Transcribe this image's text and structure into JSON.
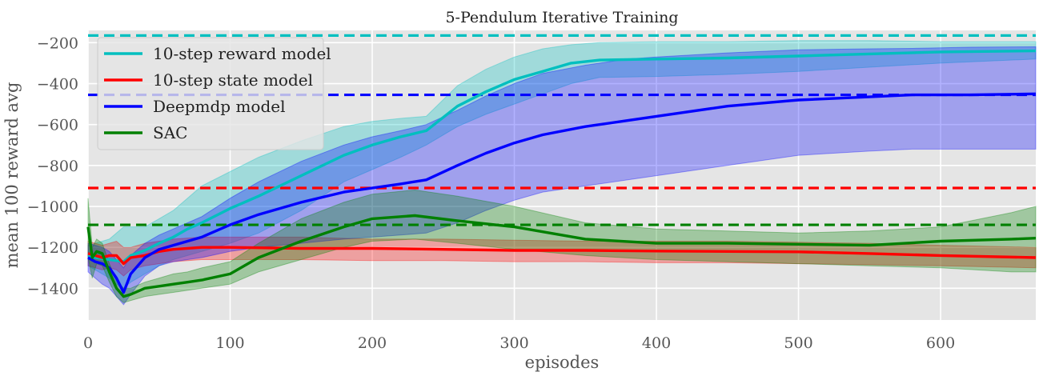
{
  "chart_data": {
    "type": "line",
    "title": "5-Pendulum Iterative Training",
    "xlabel": "episodes",
    "ylabel": "mean 100 reward avg",
    "xlim": [
      0,
      667
    ],
    "ylim": [
      -1555,
      -140
    ],
    "xticks": [
      0,
      100,
      200,
      300,
      400,
      500,
      600
    ],
    "yticks": [
      -1400,
      -1200,
      -1000,
      -800,
      -600,
      -400,
      -200
    ],
    "xtick_labels": [
      "0",
      "100",
      "200",
      "300",
      "400",
      "500",
      "600"
    ],
    "ytick_labels": [
      "−1400",
      "−1200",
      "−1000",
      "−800",
      "−600",
      "−400",
      "−200"
    ],
    "grid": true,
    "legend_position": "top-left",
    "background": "#e5e5e5",
    "series": [
      {
        "name": "10-step reward model",
        "color": "#00bfbf",
        "x": [
          0,
          5,
          10,
          15,
          20,
          25,
          30,
          40,
          50,
          60,
          70,
          80,
          100,
          120,
          150,
          180,
          200,
          220,
          238,
          260,
          280,
          300,
          320,
          340,
          360,
          400,
          450,
          500,
          550,
          600,
          667
        ],
        "y": [
          -1240,
          -1250,
          -1255,
          -1260,
          -1265,
          -1270,
          -1240,
          -1215,
          -1180,
          -1150,
          -1110,
          -1080,
          -1010,
          -950,
          -850,
          -750,
          -700,
          -660,
          -630,
          -510,
          -440,
          -380,
          -340,
          -300,
          -285,
          -280,
          -275,
          -265,
          -255,
          -245,
          -240
        ],
        "upper": [
          -1190,
          -1180,
          -1170,
          -1160,
          -1130,
          -1100,
          -1100,
          -1100,
          -1060,
          -1020,
          -960,
          -900,
          -830,
          -760,
          -680,
          -610,
          -585,
          -570,
          -560,
          -410,
          -330,
          -270,
          -230,
          -210,
          -200,
          -195,
          -195,
          -190,
          -190,
          -195,
          -195
        ],
        "lower": [
          -1290,
          -1310,
          -1330,
          -1350,
          -1380,
          -1400,
          -1370,
          -1330,
          -1290,
          -1260,
          -1240,
          -1220,
          -1180,
          -1130,
          -1020,
          -880,
          -820,
          -760,
          -700,
          -610,
          -550,
          -500,
          -450,
          -400,
          -370,
          -365,
          -355,
          -340,
          -320,
          -300,
          -280
        ],
        "reference": -165
      },
      {
        "name": "10-step state model",
        "color": "#ff0000",
        "x": [
          0,
          5,
          10,
          15,
          20,
          25,
          30,
          40,
          50,
          60,
          80,
          100,
          150,
          200,
          250,
          300,
          350,
          400,
          450,
          500,
          550,
          600,
          667
        ],
        "y": [
          -1230,
          -1240,
          -1250,
          -1240,
          -1240,
          -1280,
          -1250,
          -1240,
          -1220,
          -1210,
          -1200,
          -1200,
          -1205,
          -1205,
          -1210,
          -1215,
          -1215,
          -1218,
          -1220,
          -1222,
          -1230,
          -1240,
          -1250
        ],
        "upper": [
          -1170,
          -1180,
          -1190,
          -1180,
          -1170,
          -1200,
          -1200,
          -1180,
          -1170,
          -1160,
          -1150,
          -1150,
          -1150,
          -1160,
          -1160,
          -1165,
          -1170,
          -1170,
          -1170,
          -1175,
          -1180,
          -1190,
          -1200
        ],
        "lower": [
          -1290,
          -1300,
          -1310,
          -1300,
          -1310,
          -1340,
          -1310,
          -1290,
          -1280,
          -1270,
          -1260,
          -1260,
          -1260,
          -1265,
          -1265,
          -1270,
          -1270,
          -1275,
          -1275,
          -1280,
          -1285,
          -1290,
          -1300
        ],
        "reference": -910
      },
      {
        "name": "Deepmdp model",
        "color": "#0000ff",
        "x": [
          0,
          5,
          10,
          15,
          20,
          25,
          30,
          40,
          50,
          60,
          70,
          80,
          100,
          120,
          150,
          180,
          200,
          220,
          238,
          260,
          280,
          300,
          320,
          350,
          380,
          400,
          450,
          500,
          550,
          580,
          600,
          620,
          667
        ],
        "y": [
          -1250,
          -1270,
          -1280,
          -1300,
          -1350,
          -1420,
          -1330,
          -1250,
          -1210,
          -1190,
          -1170,
          -1150,
          -1090,
          -1040,
          -980,
          -930,
          -910,
          -890,
          -870,
          -800,
          -740,
          -690,
          -650,
          -610,
          -580,
          -560,
          -510,
          -480,
          -465,
          -455,
          -455,
          -455,
          -450
        ],
        "upper": [
          -1180,
          -1190,
          -1200,
          -1220,
          -1260,
          -1300,
          -1240,
          -1180,
          -1140,
          -1110,
          -1080,
          -1050,
          -960,
          -880,
          -780,
          -700,
          -660,
          -630,
          -600,
          -530,
          -460,
          -400,
          -350,
          -310,
          -280,
          -270,
          -250,
          -235,
          -230,
          -228,
          -225,
          -222,
          -220
        ],
        "lower": [
          -1320,
          -1350,
          -1380,
          -1400,
          -1440,
          -1480,
          -1430,
          -1340,
          -1290,
          -1270,
          -1260,
          -1250,
          -1220,
          -1200,
          -1180,
          -1160,
          -1150,
          -1140,
          -1130,
          -1080,
          -1020,
          -970,
          -930,
          -900,
          -870,
          -850,
          -800,
          -750,
          -730,
          -720,
          -720,
          -720,
          -720
        ],
        "reference": -455
      },
      {
        "name": "SAC",
        "color": "#008000",
        "x": [
          0,
          3,
          6,
          10,
          15,
          20,
          25,
          30,
          40,
          50,
          60,
          70,
          80,
          100,
          120,
          150,
          180,
          200,
          230,
          260,
          300,
          350,
          400,
          450,
          500,
          550,
          600,
          650,
          667
        ],
        "y": [
          -1100,
          -1250,
          -1220,
          -1230,
          -1320,
          -1400,
          -1440,
          -1430,
          -1400,
          -1390,
          -1380,
          -1370,
          -1360,
          -1330,
          -1250,
          -1170,
          -1100,
          -1060,
          -1045,
          -1070,
          -1100,
          -1160,
          -1180,
          -1180,
          -1185,
          -1190,
          -1170,
          -1160,
          -1155
        ],
        "upper": [
          -960,
          -1200,
          -1160,
          -1180,
          -1280,
          -1360,
          -1400,
          -1400,
          -1370,
          -1350,
          -1330,
          -1320,
          -1300,
          -1270,
          -1180,
          -1060,
          -980,
          -940,
          -920,
          -950,
          -1000,
          -1080,
          -1110,
          -1120,
          -1130,
          -1120,
          -1100,
          -1030,
          -1000
        ],
        "lower": [
          -1250,
          -1350,
          -1280,
          -1290,
          -1370,
          -1440,
          -1470,
          -1460,
          -1440,
          -1430,
          -1420,
          -1410,
          -1400,
          -1380,
          -1320,
          -1260,
          -1200,
          -1170,
          -1160,
          -1180,
          -1210,
          -1240,
          -1260,
          -1270,
          -1280,
          -1290,
          -1300,
          -1320,
          -1320
        ],
        "reference": -1090
      }
    ]
  }
}
